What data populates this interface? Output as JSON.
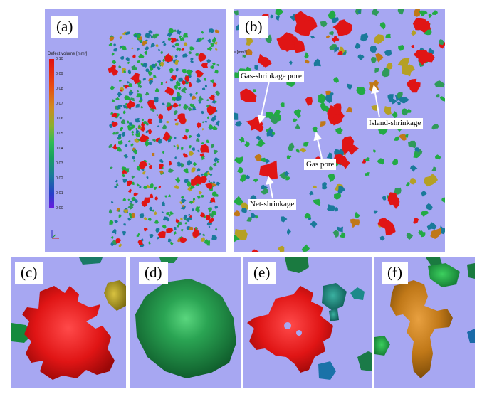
{
  "panels": {
    "a": {
      "label": "(a)",
      "legend": {
        "title": "Defect volume [mm³]",
        "ticks": [
          "0.10",
          "0.09",
          "0.08",
          "0.07",
          "0.06",
          "0.05",
          "0.04",
          "0.03",
          "0.02",
          "0.01",
          "0.00"
        ]
      }
    },
    "b": {
      "label": "(b)",
      "edge_text": "e [mm³]",
      "annotations": {
        "gas_shrinkage_pore": "Gas-shrinkage pore",
        "island_shrinkage": "Island-shrinkage",
        "gas_pore": "Gas pore",
        "net_shrinkage": "Net-shrinkage"
      }
    },
    "c": {
      "label": "(c)"
    },
    "d": {
      "label": "(d)"
    },
    "e": {
      "label": "(e)"
    },
    "f": {
      "label": "(f)"
    }
  },
  "colors": {
    "background": "#a7a7f2",
    "large_defect": "#e01515",
    "medium_defect": "#22aa44",
    "small_defect": "#1a7a9a",
    "island_defect": "#c07818",
    "gold_defect": "#b5a024"
  }
}
